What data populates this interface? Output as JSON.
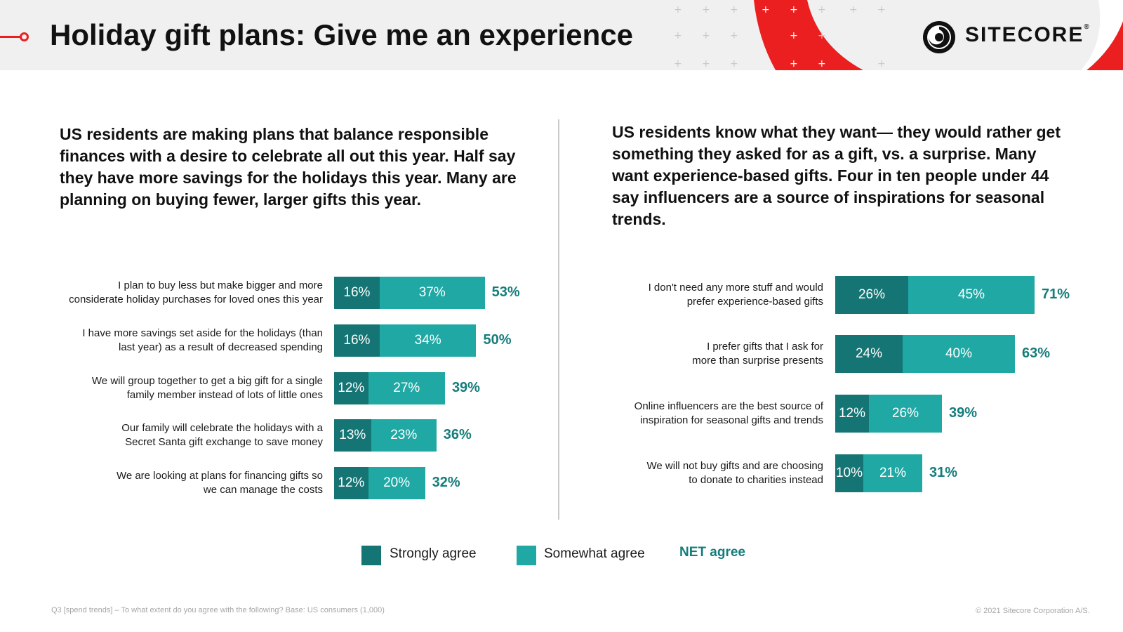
{
  "header": {
    "title": "Holiday gift plans: Give me an experience",
    "logo_text": "SITECORE",
    "logo_mark": "®",
    "accent_color": "#eb1f1f"
  },
  "intro_left": "US residents are making plans that balance responsible finances with a desire to celebrate all out this year. Half say they have more savings for the holidays this year. Many are planning on buying fewer, larger gifts this year.",
  "intro_right": "US residents know what they want— they would rather get something they asked for as a gift, vs. a surprise. Many want experience-based gifts. Four in ten people under 44 say influencers are a source of inspirations for seasonal trends.",
  "chart_data": [
    {
      "type": "bar",
      "orientation": "horizontal",
      "stacked": true,
      "categories": [
        "I plan to buy less but make bigger and more considerate holiday purchases for loved ones this year",
        "I have more savings set aside for the holidays (than last year) as a result of decreased spending",
        "We will group together to get a big gift for a single family member instead of lots of little ones",
        "Our family will celebrate the holidays with a Secret Santa gift exchange to save money",
        "We are looking at plans for financing gifts so we can manage the costs"
      ],
      "label_lines": [
        [
          "I plan to buy less but make bigger and more",
          "considerate holiday purchases for loved ones this year"
        ],
        [
          "I have more savings set aside for the holidays (than",
          "last year) as a result of decreased spending"
        ],
        [
          "We will group together to get a big gift for a single",
          "family member instead of lots of little ones"
        ],
        [
          "Our family will celebrate the holidays with a",
          "Secret Santa gift exchange to save money"
        ],
        [
          "We are looking at plans for financing gifts so",
          "we can manage the costs"
        ]
      ],
      "series": [
        {
          "name": "Strongly agree",
          "values": [
            16,
            16,
            12,
            13,
            12
          ],
          "color": "#157574"
        },
        {
          "name": "Somewhat agree",
          "values": [
            37,
            34,
            27,
            23,
            20
          ],
          "color": "#1fa8a4"
        }
      ],
      "net": [
        53,
        50,
        39,
        36,
        32
      ],
      "unit": "%"
    },
    {
      "type": "bar",
      "orientation": "horizontal",
      "stacked": true,
      "categories": [
        "I don't need any more stuff and would prefer experience-based gifts",
        "I prefer gifts that I ask for more than surprise presents",
        "Online influencers are the best source of inspiration for seasonal gifts and trends",
        "We will not buy gifts and are choosing to donate to charities instead"
      ],
      "label_lines": [
        [
          "I don't need any more stuff and would",
          "prefer experience-based gifts"
        ],
        [
          "I prefer gifts that I ask for",
          "more than surprise presents"
        ],
        [
          "Online influencers are the best source of",
          "inspiration for seasonal gifts and trends"
        ],
        [
          "We will not buy gifts and are choosing",
          "to donate to charities instead"
        ]
      ],
      "series": [
        {
          "name": "Strongly agree",
          "values": [
            26,
            24,
            12,
            10
          ],
          "color": "#157574"
        },
        {
          "name": "Somewhat agree",
          "values": [
            45,
            40,
            26,
            21
          ],
          "color": "#1fa8a4"
        }
      ],
      "net": [
        71,
        63,
        39,
        31
      ],
      "unit": "%"
    }
  ],
  "legend": {
    "strongly": "Strongly agree",
    "somewhat": "Somewhat agree",
    "net": "NET agree",
    "strong_color": "#157574",
    "some_color": "#1fa8a4",
    "net_color": "#147d7b"
  },
  "footnote": "Q3 [spend trends] – To what extent do you agree with the following? Base: US consumers (1,000)",
  "copyright": "© 2021 Sitecore Corporation A/S."
}
